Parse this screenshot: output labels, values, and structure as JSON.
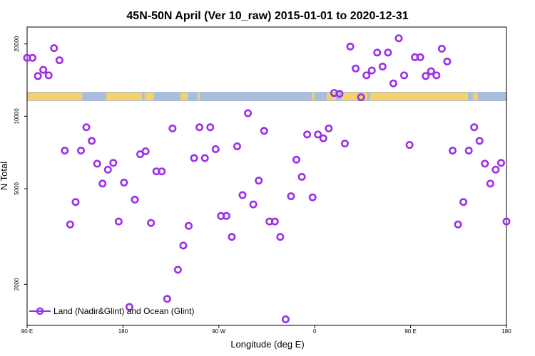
{
  "chart_data": {
    "type": "scatter",
    "title": "45N-50N April (Ver 10_raw)   2015-01-01 to 2020-12-31",
    "xlabel": "Longitude (deg E)",
    "ylabel": "N Total",
    "y_scale": "log",
    "ylim": [
      1350,
      23500
    ],
    "x_ticks": [
      "90 E",
      "180",
      "90 W",
      "0",
      "90 E",
      "180"
    ],
    "y_ticks": [
      2000,
      5000,
      10000,
      20000
    ],
    "grid": false,
    "legend_position": "bottom-left",
    "series": [
      {
        "name": "Land (Nadir&Glint) and Ocean (Glint)",
        "color": "#9b30e8",
        "marker": "open-circle",
        "points": [
          [
            0,
            17500
          ],
          [
            1,
            17500
          ],
          [
            2,
            14700
          ],
          [
            3,
            15600
          ],
          [
            4,
            14800
          ],
          [
            5,
            19200
          ],
          [
            6,
            17100
          ],
          [
            7,
            7200
          ],
          [
            8,
            3550
          ],
          [
            9,
            4400
          ],
          [
            10,
            7200
          ],
          [
            11,
            9000
          ],
          [
            12,
            7900
          ],
          [
            13,
            6350
          ],
          [
            14,
            5250
          ],
          [
            15,
            6000
          ],
          [
            16,
            6400
          ],
          [
            17,
            3650
          ],
          [
            18,
            5300
          ],
          [
            19,
            1610
          ],
          [
            20,
            4500
          ],
          [
            21,
            6950
          ],
          [
            22,
            7150
          ],
          [
            23,
            3600
          ],
          [
            24,
            5900
          ],
          [
            25,
            5900
          ],
          [
            26,
            1740
          ],
          [
            27,
            8900
          ],
          [
            28,
            2300
          ],
          [
            29,
            2900
          ],
          [
            30,
            3500
          ],
          [
            31,
            6700
          ],
          [
            32,
            9000
          ],
          [
            33,
            6700
          ],
          [
            34,
            9000
          ],
          [
            35,
            7300
          ],
          [
            36,
            3850
          ],
          [
            37,
            3850
          ],
          [
            38,
            3150
          ],
          [
            39,
            7500
          ],
          [
            40,
            4700
          ],
          [
            41,
            10300
          ],
          [
            42,
            4300
          ],
          [
            43,
            5400
          ],
          [
            44,
            8700
          ],
          [
            45,
            3650
          ],
          [
            46,
            3650
          ],
          [
            47,
            3150
          ],
          [
            48,
            1430
          ],
          [
            49,
            4650
          ],
          [
            50,
            6600
          ],
          [
            51,
            5600
          ],
          [
            52,
            8400
          ],
          [
            53,
            4600
          ],
          [
            54,
            8400
          ],
          [
            55,
            8100
          ],
          [
            56,
            8900
          ],
          [
            57,
            12500
          ],
          [
            58,
            12400
          ],
          [
            59,
            7700
          ],
          [
            60,
            19500
          ],
          [
            61,
            15800
          ],
          [
            62,
            12000
          ],
          [
            63,
            14800
          ],
          [
            64,
            15500
          ],
          [
            65,
            18400
          ],
          [
            66,
            16100
          ],
          [
            67,
            18400
          ],
          [
            68,
            13700
          ],
          [
            69,
            21100
          ],
          [
            70,
            14800
          ],
          [
            71,
            7600
          ],
          [
            72,
            17600
          ],
          [
            73,
            17600
          ],
          [
            74,
            14700
          ],
          [
            75,
            15400
          ],
          [
            76,
            14800
          ],
          [
            77,
            19100
          ],
          [
            78,
            16900
          ],
          [
            79,
            7200
          ],
          [
            80,
            3550
          ],
          [
            81,
            4400
          ],
          [
            82,
            7200
          ],
          [
            83,
            9000
          ],
          [
            84,
            7900
          ],
          [
            85,
            6350
          ],
          [
            86,
            5250
          ],
          [
            87,
            6000
          ],
          [
            88,
            6400
          ],
          [
            89,
            3650
          ]
        ]
      }
    ]
  }
}
